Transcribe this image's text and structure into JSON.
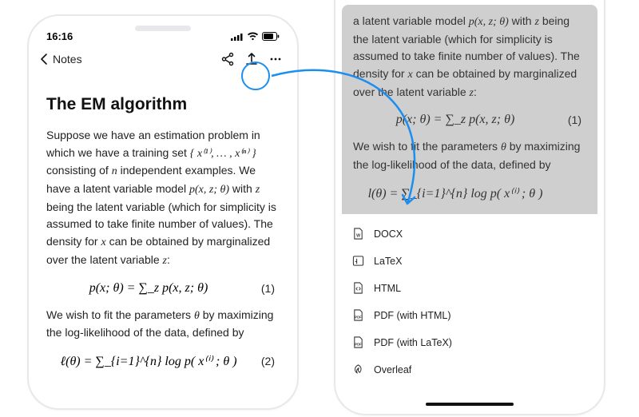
{
  "statusbar": {
    "time": "16:16"
  },
  "nav": {
    "back_label": "Notes"
  },
  "article": {
    "title": "The EM algorithm",
    "p1_a": "Suppose we have an estimation problem in which we have a training set ",
    "p1_set": "{ x⁽¹⁾, … , x⁽ⁿ⁾ }",
    "p1_b": " consisting of ",
    "p1_n": "n",
    "p1_c": " independent examples. We have a latent variable model ",
    "p1_model": "p(x, z; θ)",
    "p1_d": " with ",
    "p1_z": "z",
    "p1_e": " being the latent variable (which for simplicity is assumed to take finite number of values). The density for ",
    "p1_x": "x",
    "p1_f": " can be obtained by marginalized over the latent variable ",
    "p1_z2": "z",
    "p1_g": ":",
    "eq1": "p(x; θ) = ∑_z p(x, z; θ)",
    "eq1_num": "(1)",
    "p2_a": "We wish to fit the parameters ",
    "p2_theta": "θ",
    "p2_b": " by maximizing the log-likelihood of the data, defined by",
    "eq2": "ℓ(θ) = ∑_{i=1}^{n} log p( x⁽ⁱ⁾ ; θ )",
    "eq2_num": "(2)"
  },
  "preview": {
    "p1_a": "a latent variable model ",
    "p1_model": "p(x, z; θ)",
    "p1_b": " with ",
    "p1_z": "z",
    "p1_c": " being the latent variable (which for simplicity is assumed to take finite number of values). The density for ",
    "p1_x": "x",
    "p1_d": " can be obtained by marginalized over the latent variable ",
    "p1_z2": "z",
    "p1_e": ":",
    "eq1": "p(x; θ) = ∑_z p(x, z; θ)",
    "eq1_num": "(1)",
    "p2_a": "We wish to fit the parameters ",
    "p2_theta": "θ",
    "p2_b": " by maximizing the log-likelihood of the data, defined by",
    "eq2": "l(θ) = ∑_{i=1}^{n} log p( x⁽ⁱ⁾ ; θ )"
  },
  "export": {
    "items": [
      {
        "name": "export-docx",
        "label": "DOCX",
        "icon": "docx"
      },
      {
        "name": "export-latex",
        "label": "LaTeX",
        "icon": "latex"
      },
      {
        "name": "export-html",
        "label": "HTML",
        "icon": "html"
      },
      {
        "name": "export-pdf-html",
        "label": "PDF (with HTML)",
        "icon": "pdf"
      },
      {
        "name": "export-pdf-latex",
        "label": "PDF (with LaTeX)",
        "icon": "pdf"
      },
      {
        "name": "export-overleaf",
        "label": "Overleaf",
        "icon": "overleaf"
      }
    ]
  },
  "style": {
    "accent": "#1c8ef0",
    "text": "#222222",
    "dim_bg": "#cfcfcf",
    "phone_border": "#e8e8ec"
  }
}
